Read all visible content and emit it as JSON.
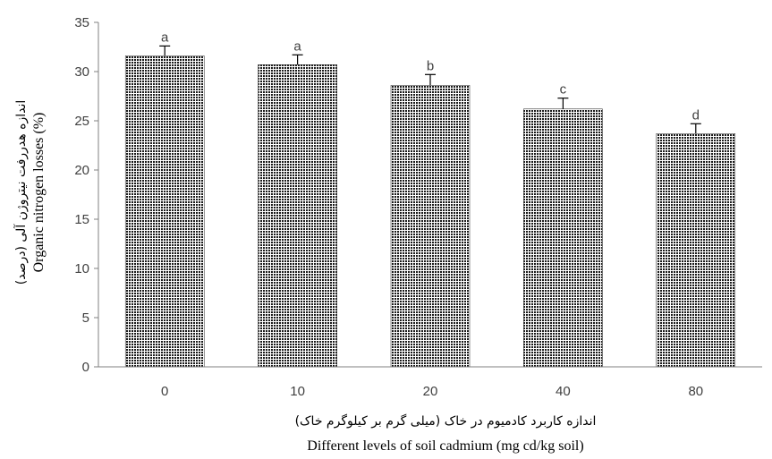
{
  "chart_data": {
    "type": "bar",
    "categories": [
      "0",
      "10",
      "20",
      "40",
      "80"
    ],
    "values": [
      31.6,
      30.7,
      28.6,
      26.2,
      23.7
    ],
    "error": [
      1.0,
      1.0,
      1.1,
      1.1,
      1.0
    ],
    "letters": [
      "a",
      "a",
      "b",
      "c",
      "d"
    ],
    "ylim": [
      0,
      35
    ],
    "yticks": [
      0,
      5,
      10,
      15,
      20,
      25,
      30,
      35
    ],
    "xlabel_fa": "اندازه کاربرد کادمیوم در خاک (میلی گرم بر کیلوگرم خاک)",
    "xlabel": "Different levels of soil cadmium (mg cd/kg soil)",
    "ylabel_fa": "اندازه هدررفت نیتروژن آلی (درصد)",
    "ylabel": "Organic nitrogen losses (%)",
    "grid": false,
    "legend": "none",
    "colors": {
      "bar_fill": "#ffffff",
      "bar_pattern": "#1a1a1a",
      "axis": "#808080",
      "text": "#404040"
    }
  }
}
